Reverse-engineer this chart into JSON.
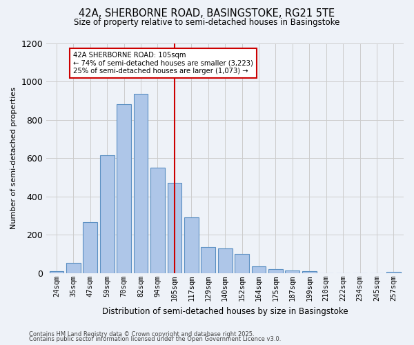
{
  "title": "42A, SHERBORNE ROAD, BASINGSTOKE, RG21 5TE",
  "subtitle": "Size of property relative to semi-detached houses in Basingstoke",
  "xlabel": "Distribution of semi-detached houses by size in Basingstoke",
  "ylabel": "Number of semi-detached properties",
  "categories": [
    "24sqm",
    "35sqm",
    "47sqm",
    "59sqm",
    "70sqm",
    "82sqm",
    "94sqm",
    "105sqm",
    "117sqm",
    "129sqm",
    "140sqm",
    "152sqm",
    "164sqm",
    "175sqm",
    "187sqm",
    "199sqm",
    "210sqm",
    "222sqm",
    "234sqm",
    "245sqm",
    "257sqm"
  ],
  "values": [
    10,
    55,
    265,
    615,
    880,
    935,
    550,
    470,
    290,
    135,
    130,
    100,
    35,
    22,
    15,
    12,
    0,
    0,
    0,
    0,
    8
  ],
  "bar_color": "#aec6e8",
  "bar_edge_color": "#5a8fc2",
  "property_label": "42A SHERBORNE ROAD: 105sqm",
  "pct_smaller": 74,
  "n_smaller": 3223,
  "pct_larger": 25,
  "n_larger": 1073,
  "vline_color": "#cc0000",
  "annotation_box_color": "#cc0000",
  "ylim": [
    0,
    1200
  ],
  "yticks": [
    0,
    200,
    400,
    600,
    800,
    1000,
    1200
  ],
  "grid_color": "#cccccc",
  "bg_color": "#eef2f8",
  "footer1": "Contains HM Land Registry data © Crown copyright and database right 2025.",
  "footer2": "Contains public sector information licensed under the Open Government Licence v3.0."
}
